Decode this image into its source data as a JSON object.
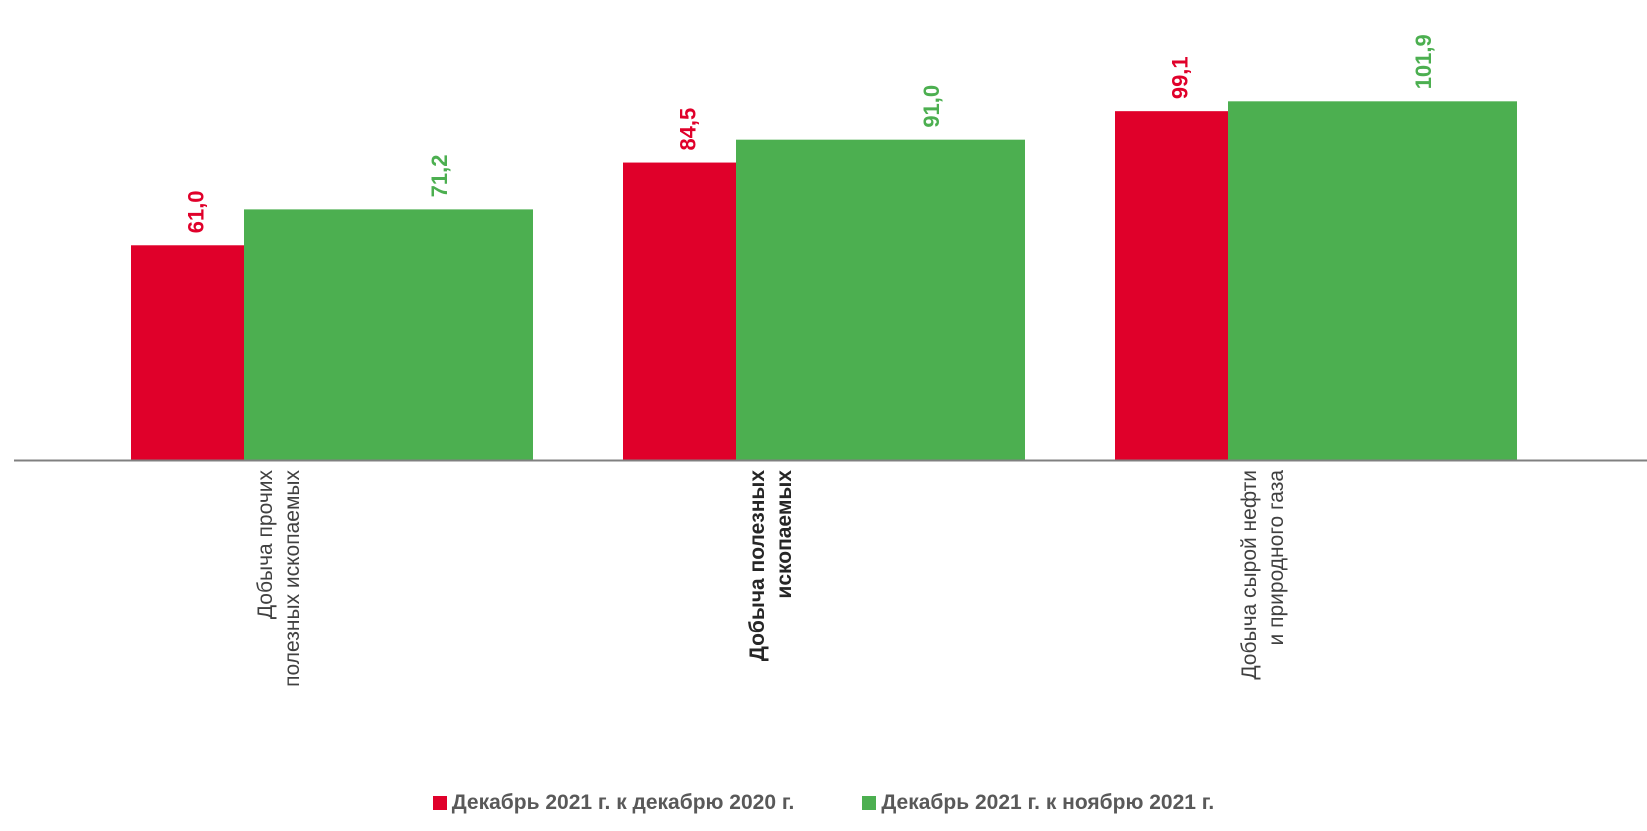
{
  "chart_data": {
    "type": "bar",
    "categories": [
      {
        "lines": [
          "Добыча прочих",
          "полезных ископаемых"
        ],
        "bold": false
      },
      {
        "lines": [
          "Добыча полезных",
          "ископаемых"
        ],
        "bold": true
      },
      {
        "lines": [
          "Добыча сырой нефти",
          "и природного газа"
        ],
        "bold": false
      }
    ],
    "series": [
      {
        "name": "Декабрь 2021 г. к декабрю 2020 г.",
        "color": "#e0002a",
        "values": [
          61.0,
          84.5,
          99.1
        ],
        "labels": [
          "61,0",
          "84,5",
          "99,1"
        ]
      },
      {
        "name": "Декабрь 2021 г. к ноябрю 2021 г.",
        "color": "#4caf50",
        "values": [
          71.2,
          91.0,
          101.9
        ],
        "labels": [
          "71,2",
          "91,0",
          "101,9"
        ]
      }
    ],
    "ylim": [
      0,
      130
    ],
    "grid": false,
    "legend_position": "bottom"
  }
}
